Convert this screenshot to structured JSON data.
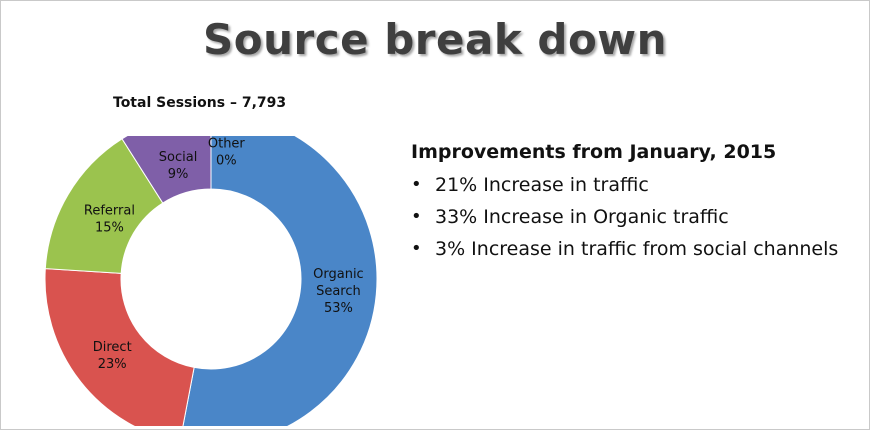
{
  "slide": {
    "title": "Source break down",
    "total_sessions": "Total Sessions – 7,793"
  },
  "chart_data": {
    "type": "pie",
    "donut": true,
    "total_label": "Total Sessions – 7,793",
    "slices": [
      {
        "lines": [
          "Organic",
          "Search",
          "53%"
        ],
        "value": 53,
        "color": "#4a86c8"
      },
      {
        "lines": [
          "Direct",
          "23%"
        ],
        "value": 23,
        "color": "#d9534f"
      },
      {
        "lines": [
          "Referral",
          "15%"
        ],
        "value": 15,
        "color": "#9bc34e"
      },
      {
        "lines": [
          "Social",
          "9%"
        ],
        "value": 9,
        "color": "#7f5fa8"
      },
      {
        "lines": [
          "Other",
          "0%"
        ],
        "value": 0,
        "color": "#f0a030"
      }
    ]
  },
  "improvements": {
    "heading": "Improvements from January, 2015",
    "items": [
      "21% Increase in traffic",
      "33% Increase in Organic traffic",
      "3% Increase in traffic from social channels"
    ]
  }
}
